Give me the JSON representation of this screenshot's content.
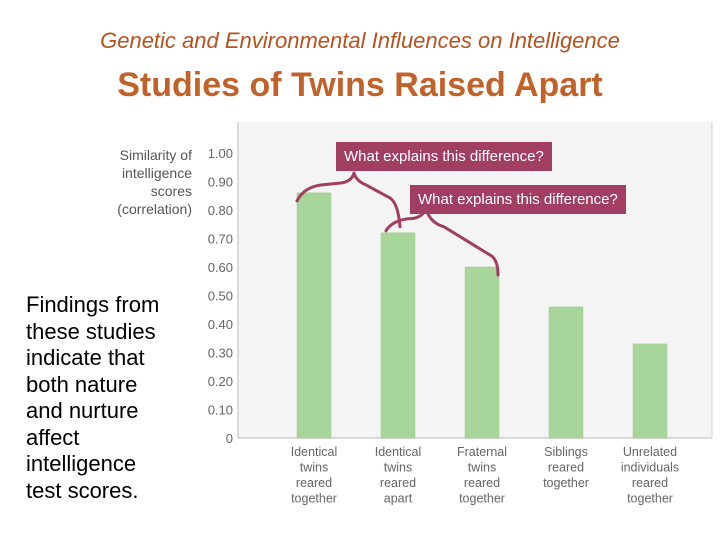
{
  "slide": {
    "supertitle": "Genetic and Environmental Influences on Intelligence",
    "title": "Studies of Twins Raised Apart",
    "findings_lines": [
      "Findings from",
      "these studies",
      "indicate that",
      "both nature",
      "and nurture",
      "affect",
      "intelligence",
      "test scores."
    ],
    "callouts": [
      "What explains this difference?",
      "What explains this difference?"
    ]
  },
  "chart_data": {
    "type": "bar",
    "ylabel_lines": [
      "Similarity of",
      "intelligence",
      "scores",
      "(correlation)"
    ],
    "categories": [
      [
        "Identical",
        "twins",
        "reared",
        "together"
      ],
      [
        "Identical",
        "twins",
        "reared",
        "apart"
      ],
      [
        "Fraternal",
        "twins",
        "reared",
        "together"
      ],
      [
        "Siblings",
        "reared",
        "together"
      ],
      [
        "Unrelated",
        "individuals",
        "reared",
        "together"
      ]
    ],
    "values": [
      0.86,
      0.72,
      0.6,
      0.46,
      0.33
    ],
    "yticks": [
      "0",
      "0.10",
      "0.20",
      "0.30",
      "0.40",
      "0.50",
      "0.60",
      "0.70",
      "0.80",
      "0.90",
      "1.00"
    ],
    "ylim": [
      0,
      1.0
    ],
    "grid": false,
    "colors": {
      "bar": "#a8d59a",
      "bar_edge": "#9ccb8d",
      "plot_bg": "#f4f4f4",
      "axis": "#d0d0d0",
      "tick_text": "#666666",
      "bracket": "#a13f63"
    }
  }
}
